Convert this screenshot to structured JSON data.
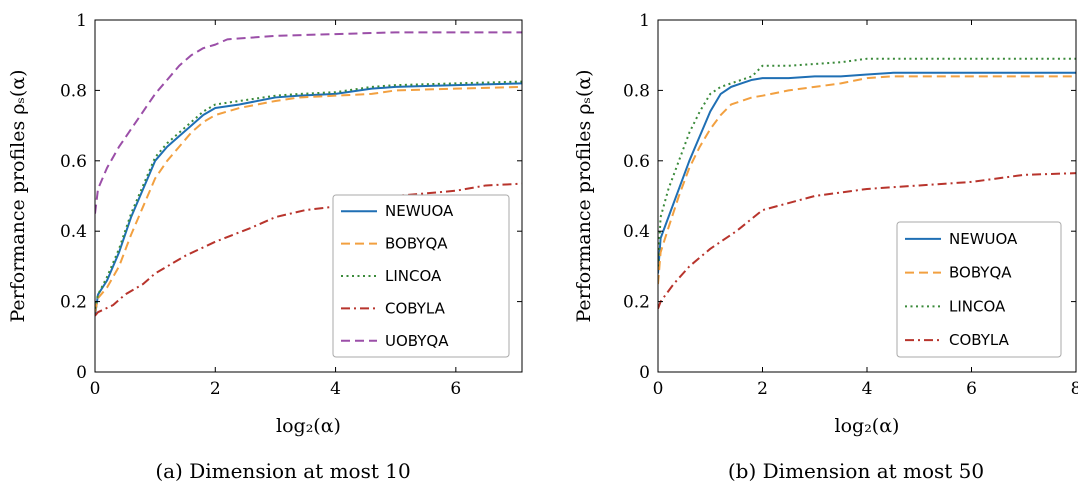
{
  "chart_data": [
    {
      "type": "line",
      "caption": "(a) Dimension at most 10",
      "xlabel": "log₂(α)",
      "ylabel": "Performance profiles ρₛ(α)",
      "xlim": [
        0,
        7.1
      ],
      "ylim": [
        0,
        1
      ],
      "xticks": [
        0,
        2,
        4,
        6
      ],
      "yticks": [
        0,
        0.2,
        0.4,
        0.6,
        0.8,
        1
      ],
      "xtick_labels": [
        "0",
        "2",
        "4",
        "6"
      ],
      "ytick_labels": [
        "0",
        "0.2",
        "0.4",
        "0.6",
        "0.8",
        "1"
      ],
      "legend": "lower-right",
      "grid": false,
      "series": [
        {
          "name": "NEWUOA",
          "color": "#1f6fb4",
          "style": "solid",
          "x": [
            0,
            0.05,
            0.2,
            0.4,
            0.6,
            0.8,
            1.0,
            1.2,
            1.4,
            1.6,
            1.8,
            2.0,
            2.4,
            3.0,
            3.4,
            4.0,
            4.6,
            5.0,
            6.0,
            7.1
          ],
          "y": [
            0.16,
            0.22,
            0.26,
            0.34,
            0.44,
            0.52,
            0.6,
            0.64,
            0.67,
            0.7,
            0.73,
            0.75,
            0.76,
            0.78,
            0.785,
            0.79,
            0.805,
            0.81,
            0.815,
            0.82
          ]
        },
        {
          "name": "BOBYQA",
          "color": "#f2a040",
          "style": "dashed",
          "x": [
            0,
            0.05,
            0.2,
            0.4,
            0.6,
            0.8,
            1.0,
            1.2,
            1.4,
            1.6,
            1.8,
            2.0,
            2.4,
            3.0,
            3.4,
            4.0,
            4.6,
            5.0,
            6.0,
            7.1
          ],
          "y": [
            0.17,
            0.21,
            0.24,
            0.3,
            0.39,
            0.47,
            0.55,
            0.6,
            0.64,
            0.68,
            0.71,
            0.73,
            0.75,
            0.77,
            0.78,
            0.785,
            0.79,
            0.8,
            0.805,
            0.81
          ]
        },
        {
          "name": "LINCOA",
          "color": "#3a8a3a",
          "style": "dotted",
          "x": [
            0,
            0.05,
            0.2,
            0.4,
            0.6,
            0.8,
            1.0,
            1.2,
            1.4,
            1.6,
            1.8,
            2.0,
            2.4,
            3.0,
            3.4,
            4.0,
            4.6,
            5.0,
            6.0,
            7.1
          ],
          "y": [
            0.18,
            0.22,
            0.27,
            0.35,
            0.45,
            0.53,
            0.61,
            0.65,
            0.68,
            0.71,
            0.74,
            0.76,
            0.77,
            0.785,
            0.79,
            0.795,
            0.81,
            0.815,
            0.82,
            0.825
          ]
        },
        {
          "name": "COBYLA",
          "color": "#b8342c",
          "style": "dashdot",
          "x": [
            0,
            0.05,
            0.3,
            0.5,
            0.8,
            1.0,
            1.5,
            2.0,
            2.6,
            3.0,
            3.5,
            4.0,
            4.5,
            5.0,
            6.0,
            6.5,
            7.1
          ],
          "y": [
            0.16,
            0.17,
            0.19,
            0.22,
            0.25,
            0.28,
            0.33,
            0.37,
            0.41,
            0.44,
            0.46,
            0.47,
            0.49,
            0.5,
            0.515,
            0.53,
            0.535
          ]
        },
        {
          "name": "UOBYQA",
          "color": "#9b4fa8",
          "style": "dashed",
          "x": [
            0,
            0.05,
            0.2,
            0.4,
            0.6,
            0.8,
            1.0,
            1.2,
            1.4,
            1.6,
            1.8,
            2.0,
            2.2,
            2.6,
            3.0,
            4.0,
            5.0,
            6.0,
            7.1
          ],
          "y": [
            0.45,
            0.52,
            0.58,
            0.64,
            0.69,
            0.74,
            0.79,
            0.83,
            0.87,
            0.9,
            0.92,
            0.93,
            0.945,
            0.95,
            0.955,
            0.96,
            0.965,
            0.965,
            0.965
          ]
        }
      ]
    },
    {
      "type": "line",
      "caption": "(b) Dimension at most 50",
      "xlabel": "log₂(α)",
      "ylabel": "Performance profiles ρₛ(α)",
      "xlim": [
        0,
        8
      ],
      "ylim": [
        0,
        1
      ],
      "xticks": [
        0,
        2,
        4,
        6,
        8
      ],
      "yticks": [
        0,
        0.2,
        0.4,
        0.6,
        0.8,
        1
      ],
      "xtick_labels": [
        "0",
        "2",
        "4",
        "6",
        "8"
      ],
      "ytick_labels": [
        "0",
        "0.2",
        "0.4",
        "0.6",
        "0.8",
        "1"
      ],
      "legend": "lower-right",
      "grid": false,
      "series": [
        {
          "name": "NEWUOA",
          "color": "#1f6fb4",
          "style": "solid",
          "x": [
            0,
            0.05,
            0.2,
            0.4,
            0.6,
            0.8,
            1.0,
            1.2,
            1.4,
            1.6,
            1.8,
            2.0,
            2.5,
            3.0,
            3.5,
            4.0,
            4.5,
            5.0,
            6.0,
            7.0,
            8.0
          ],
          "y": [
            0.28,
            0.38,
            0.44,
            0.52,
            0.6,
            0.67,
            0.74,
            0.79,
            0.81,
            0.82,
            0.83,
            0.835,
            0.835,
            0.84,
            0.84,
            0.845,
            0.85,
            0.85,
            0.85,
            0.85,
            0.85
          ]
        },
        {
          "name": "BOBYQA",
          "color": "#f2a040",
          "style": "dashed",
          "x": [
            0,
            0.05,
            0.2,
            0.4,
            0.6,
            0.8,
            1.0,
            1.2,
            1.4,
            1.6,
            1.8,
            2.0,
            2.5,
            3.0,
            3.5,
            4.0,
            4.5,
            5.0,
            6.0,
            7.0,
            8.0
          ],
          "y": [
            0.25,
            0.34,
            0.41,
            0.5,
            0.58,
            0.64,
            0.69,
            0.73,
            0.76,
            0.77,
            0.78,
            0.785,
            0.8,
            0.81,
            0.82,
            0.835,
            0.84,
            0.84,
            0.84,
            0.84,
            0.84
          ]
        },
        {
          "name": "LINCOA",
          "color": "#3a8a3a",
          "style": "dotted",
          "x": [
            0,
            0.05,
            0.2,
            0.4,
            0.6,
            0.8,
            1.0,
            1.2,
            1.4,
            1.6,
            1.8,
            2.0,
            2.5,
            3.0,
            3.5,
            4.0,
            4.5,
            5.0,
            6.0,
            7.0,
            8.0
          ],
          "y": [
            0.3,
            0.44,
            0.52,
            0.6,
            0.68,
            0.74,
            0.79,
            0.81,
            0.82,
            0.83,
            0.84,
            0.87,
            0.87,
            0.875,
            0.88,
            0.89,
            0.89,
            0.89,
            0.89,
            0.89,
            0.89
          ]
        },
        {
          "name": "COBYLA",
          "color": "#b8342c",
          "style": "dashdot",
          "x": [
            0,
            0.05,
            0.3,
            0.6,
            1.0,
            1.5,
            2.0,
            2.5,
            3.0,
            3.5,
            4.0,
            5.0,
            6.0,
            7.0,
            8.0
          ],
          "y": [
            0.18,
            0.2,
            0.25,
            0.3,
            0.35,
            0.4,
            0.46,
            0.48,
            0.5,
            0.51,
            0.52,
            0.53,
            0.54,
            0.56,
            0.565
          ]
        }
      ]
    }
  ]
}
